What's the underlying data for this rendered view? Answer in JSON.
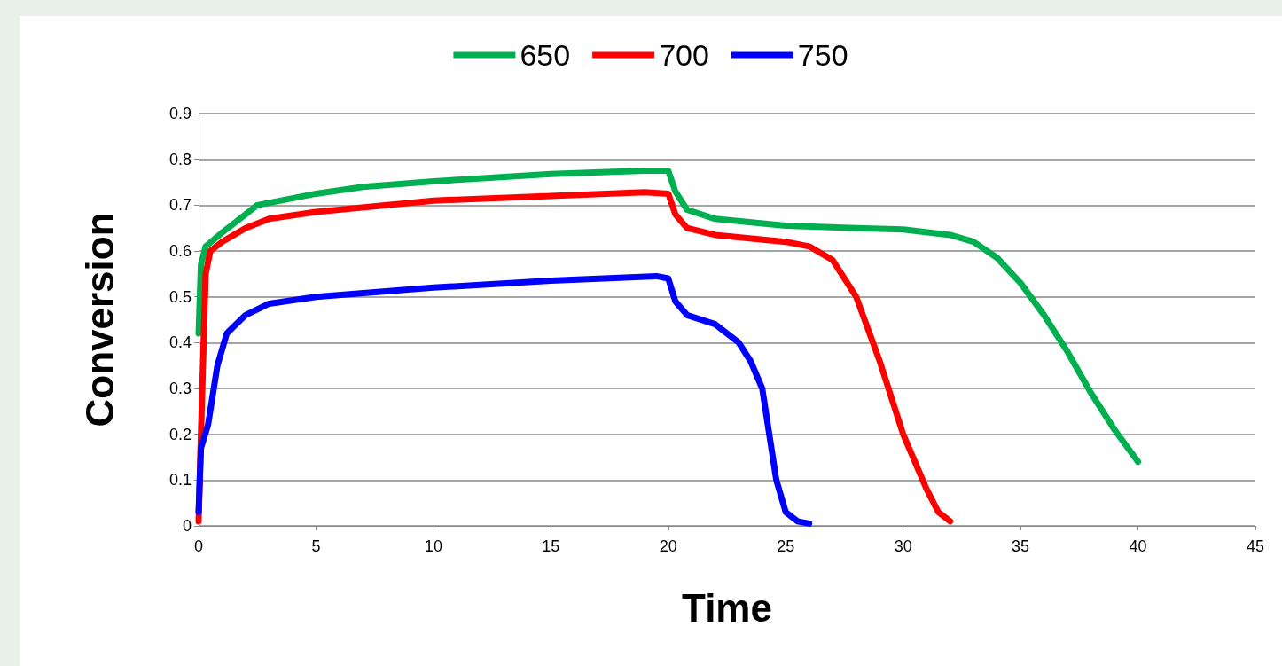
{
  "chart_data": {
    "type": "line",
    "xlabel": "Time",
    "ylabel": "Conversion",
    "xlim": [
      0,
      45
    ],
    "xticks": [
      0,
      5,
      10,
      15,
      20,
      25,
      30,
      35,
      40,
      45
    ],
    "ylim": [
      0,
      0.9
    ],
    "yticks": [
      0,
      0.1,
      0.2,
      0.3,
      0.4,
      0.5,
      0.6,
      0.7,
      0.8,
      0.9
    ],
    "grid": "y",
    "legend": "top",
    "marker": "none",
    "line_style": "solid",
    "series": [
      {
        "name": "650",
        "color": "#00b050",
        "x": [
          0,
          0.1,
          0.3,
          1,
          2,
          2.5,
          5,
          7,
          10,
          15,
          19,
          20,
          20.3,
          20.8,
          22,
          25,
          28,
          30,
          32,
          33,
          34,
          35,
          36,
          37,
          38,
          39,
          40
        ],
        "values": [
          0.42,
          0.57,
          0.61,
          0.64,
          0.68,
          0.7,
          0.725,
          0.74,
          0.752,
          0.768,
          0.775,
          0.775,
          0.73,
          0.69,
          0.67,
          0.655,
          0.65,
          0.647,
          0.635,
          0.62,
          0.585,
          0.53,
          0.46,
          0.38,
          0.29,
          0.21,
          0.14
        ]
      },
      {
        "name": "700",
        "color": "#ff0000",
        "x": [
          0,
          0.1,
          0.3,
          0.5,
          1,
          2,
          3,
          5,
          10,
          15,
          19,
          20,
          20.3,
          20.8,
          22,
          25,
          26,
          27,
          28,
          29,
          30,
          31,
          31.5,
          32
        ],
        "values": [
          0.01,
          0.2,
          0.55,
          0.6,
          0.62,
          0.65,
          0.67,
          0.685,
          0.71,
          0.72,
          0.728,
          0.725,
          0.68,
          0.65,
          0.635,
          0.62,
          0.61,
          0.58,
          0.5,
          0.36,
          0.2,
          0.08,
          0.03,
          0.01
        ]
      },
      {
        "name": "750",
        "color": "#0000ff",
        "x": [
          0,
          0.1,
          0.4,
          0.8,
          1.2,
          2,
          3,
          5,
          10,
          15,
          19.5,
          20,
          20.3,
          20.8,
          22,
          23,
          23.5,
          24,
          24.3,
          24.6,
          25,
          25.5,
          26
        ],
        "values": [
          0.03,
          0.17,
          0.22,
          0.35,
          0.42,
          0.46,
          0.485,
          0.5,
          0.52,
          0.535,
          0.545,
          0.54,
          0.49,
          0.46,
          0.44,
          0.4,
          0.36,
          0.3,
          0.2,
          0.1,
          0.03,
          0.01,
          0.005
        ]
      }
    ]
  }
}
